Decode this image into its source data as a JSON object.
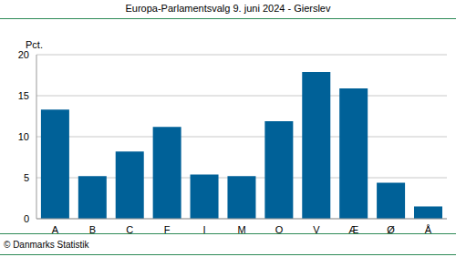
{
  "chart_data": {
    "type": "bar",
    "title": "Europa-Parlamentsvalg 9. juni 2024 - Gierslev",
    "y_label": "Pct.",
    "source": "© Danmarks Statistik",
    "categories": [
      "A",
      "B",
      "C",
      "F",
      "I",
      "M",
      "O",
      "V",
      "Æ",
      "Ø",
      "Å"
    ],
    "values": [
      13.3,
      5.2,
      8.2,
      11.2,
      5.4,
      5.2,
      11.9,
      17.9,
      15.9,
      4.4,
      1.5
    ],
    "color": "#006198",
    "ylim": [
      0,
      20
    ],
    "yticks": [
      0,
      5,
      10,
      15,
      20
    ],
    "grid": true
  }
}
